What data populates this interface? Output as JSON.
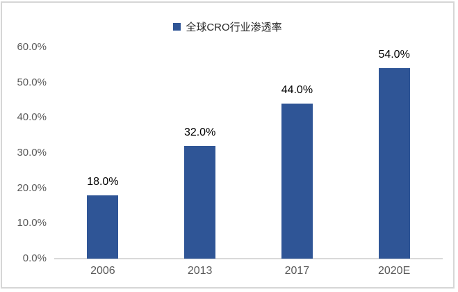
{
  "legend": {
    "label": "全球CRO行业渗透率",
    "marker_color": "#2F5596"
  },
  "chart_data": {
    "type": "bar",
    "title": "",
    "xlabel": "",
    "ylabel": "",
    "categories": [
      "2006",
      "2013",
      "2017",
      "2020E"
    ],
    "values": [
      18.0,
      32.0,
      44.0,
      54.0
    ],
    "data_labels": [
      "18.0%",
      "32.0%",
      "44.0%",
      "54.0%"
    ],
    "series_name": "全球CRO行业渗透率",
    "ylim": [
      0,
      60
    ],
    "y_ticks": [
      "0.0%",
      "10.0%",
      "20.0%",
      "30.0%",
      "40.0%",
      "50.0%",
      "60.0%"
    ],
    "grid": false,
    "legend_position": "top",
    "bar_color": "#2F5596",
    "axis_line_color": "#D9D9D9",
    "tick_label_color": "#595959",
    "data_label_color": "#000000"
  }
}
